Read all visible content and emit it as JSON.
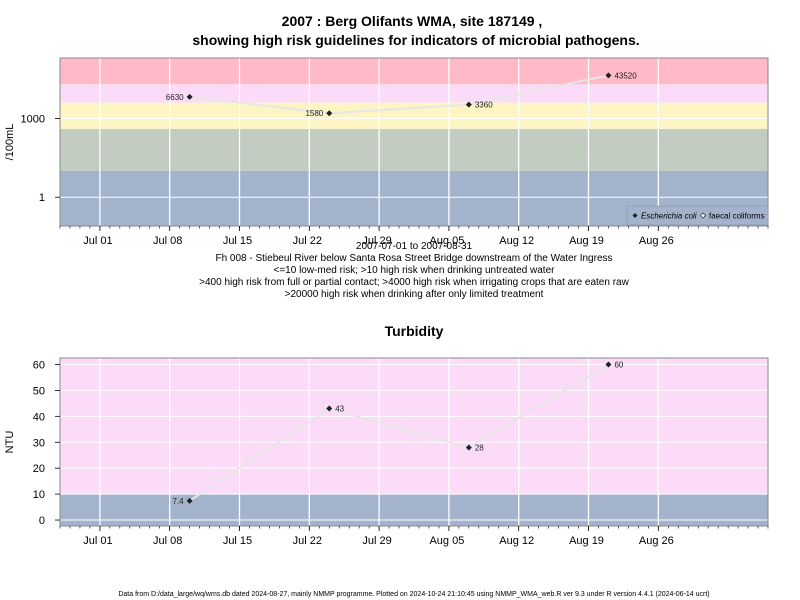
{
  "chart_data": [
    {
      "type": "line",
      "title_line1": "2007 : Berg Olifants WMA, site 187149 ,",
      "title_line2": "showing high risk guidelines for indicators of microbial pathogens.",
      "ylabel": "/100mL",
      "yscale": "log",
      "ylim": [
        0.08,
        200000
      ],
      "yticks": [
        {
          "value": 1,
          "label": "1"
        },
        {
          "value": 1000,
          "label": "1000"
        }
      ],
      "xlim": [
        "2007-06-27",
        "2007-09-06"
      ],
      "xticks": [
        {
          "date": "2007-07-01",
          "label": "Jul 01"
        },
        {
          "date": "2007-07-08",
          "label": "Jul 08"
        },
        {
          "date": "2007-07-15",
          "label": "Jul 15"
        },
        {
          "date": "2007-07-22",
          "label": "Jul 22"
        },
        {
          "date": "2007-07-29",
          "label": "Jul 29"
        },
        {
          "date": "2007-08-05",
          "label": "Aug 05"
        },
        {
          "date": "2007-08-12",
          "label": "Aug 12"
        },
        {
          "date": "2007-08-19",
          "label": "Aug 19"
        },
        {
          "date": "2007-08-26",
          "label": "Aug 26"
        }
      ],
      "bands": [
        {
          "from": 0.08,
          "to": 10,
          "color": "#a3b3cb"
        },
        {
          "from": 10,
          "to": 400,
          "color": "#c2ccc0"
        },
        {
          "from": 400,
          "to": 4000,
          "color": "#fdf5c4"
        },
        {
          "from": 4000,
          "to": 20000,
          "color": "#fbdbf8"
        },
        {
          "from": 20000,
          "to": 200000,
          "color": "#ffb9c7"
        }
      ],
      "series": [
        {
          "name": "Escherichia coli",
          "points": [
            {
              "date": "2007-07-10",
              "value": 6630,
              "label": "6630"
            },
            {
              "date": "2007-07-24",
              "value": 1580,
              "label": "1580"
            },
            {
              "date": "2007-08-07",
              "value": 3360,
              "label": "3360"
            },
            {
              "date": "2007-08-21",
              "value": 43520,
              "label": "43520"
            }
          ]
        }
      ],
      "legend": {
        "position": "bottom-right",
        "entries": [
          {
            "name": "Escherichia coli",
            "marker": "filled-diamond"
          },
          {
            "name": "faecal coliforms",
            "marker": "open-diamond"
          }
        ]
      },
      "caption": [
        "2007-07-01 to 2007-08-31",
        "Fh 008 - Stiebeul River below Santa Rosa Street Bridge downstream of the Water Ingress",
        "<=10 low-med risk; >10 high risk when drinking untreated water",
        ">400 high risk from full or partial contact; >4000 high risk when irrigating crops that are eaten raw",
        ">20000 high risk when drinking after only limited treatment"
      ]
    },
    {
      "type": "line",
      "title": "Turbidity",
      "ylabel": "NTU",
      "ylim": [
        -2.3,
        62.5
      ],
      "yticks": [
        0,
        10,
        20,
        30,
        40,
        50,
        60
      ],
      "xlim": [
        "2007-06-27",
        "2007-09-06"
      ],
      "xticks": [
        {
          "date": "2007-07-01",
          "label": "Jul 01"
        },
        {
          "date": "2007-07-08",
          "label": "Jul 08"
        },
        {
          "date": "2007-07-15",
          "label": "Jul 15"
        },
        {
          "date": "2007-07-22",
          "label": "Jul 22"
        },
        {
          "date": "2007-07-29",
          "label": "Jul 29"
        },
        {
          "date": "2007-08-05",
          "label": "Aug 05"
        },
        {
          "date": "2007-08-12",
          "label": "Aug 12"
        },
        {
          "date": "2007-08-19",
          "label": "Aug 19"
        },
        {
          "date": "2007-08-26",
          "label": "Aug 26"
        }
      ],
      "bands": [
        {
          "from": -2.3,
          "to": 10,
          "color": "#a3b3cb"
        },
        {
          "from": 10,
          "to": 62.5,
          "color": "#fbdbf8"
        }
      ],
      "series": [
        {
          "name": "",
          "points": [
            {
              "date": "2007-07-10",
              "value": 7.4,
              "label": "7.4"
            },
            {
              "date": "2007-07-24",
              "value": 43,
              "label": "43"
            },
            {
              "date": "2007-08-07",
              "value": 28,
              "label": "28"
            },
            {
              "date": "2007-08-21",
              "value": 60,
              "label": "60"
            }
          ]
        }
      ]
    }
  ],
  "footer": "Data from D:/data_large/wq/wms.db dated 2024-08-27, mainly NMMP programme. Plotted on 2024-10-24 21:10:45 using NMMP_WMA_web.R ver 9.3 under R version 4.4.1 (2024-06-14 ucrt)"
}
